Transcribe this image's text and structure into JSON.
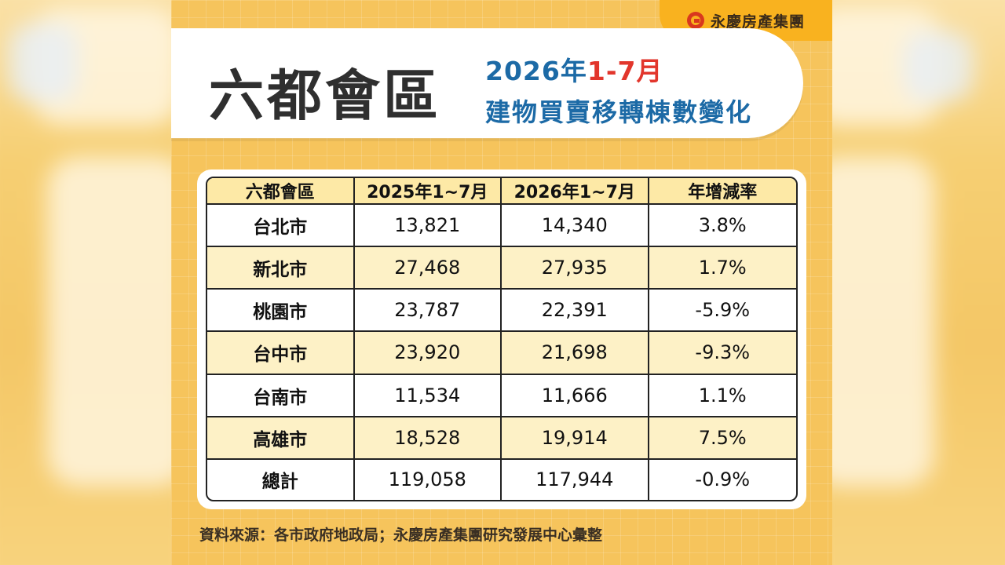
{
  "brand": {
    "name": "永慶房產集團"
  },
  "title": {
    "main": "六都會區",
    "sub_year": "2026年",
    "sub_period": "1-7月",
    "sub_line2": "建物買賣移轉棟數變化"
  },
  "table": {
    "headers": [
      "六都會區",
      "2025年1~7月",
      "2026年1~7月",
      "年增減率"
    ],
    "rows": [
      {
        "city": "台北市",
        "y2025": "13,821",
        "y2026": "14,340",
        "rate": "3.8%"
      },
      {
        "city": "新北市",
        "y2025": "27,468",
        "y2026": "27,935",
        "rate": "1.7%"
      },
      {
        "city": "桃園市",
        "y2025": "23,787",
        "y2026": "22,391",
        "rate": "-5.9%"
      },
      {
        "city": "台中市",
        "y2025": "23,920",
        "y2026": "21,698",
        "rate": "-9.3%"
      },
      {
        "city": "台南市",
        "y2025": "11,534",
        "y2026": "11,666",
        "rate": "1.1%"
      },
      {
        "city": "高雄市",
        "y2025": "18,528",
        "y2026": "19,914",
        "rate": "7.5%"
      },
      {
        "city": "總計",
        "y2025": "119,058",
        "y2026": "117,944",
        "rate": "-0.9%"
      }
    ]
  },
  "source": "資料來源：各市政府地政局；永慶房產集團研究發展中心彙整",
  "colors": {
    "background": "#f6c45c",
    "accent_blue": "#1c6aa6",
    "accent_red": "#e2362c",
    "header_fill": "#fde9a6",
    "row_alt_fill": "#fdf1c6"
  }
}
